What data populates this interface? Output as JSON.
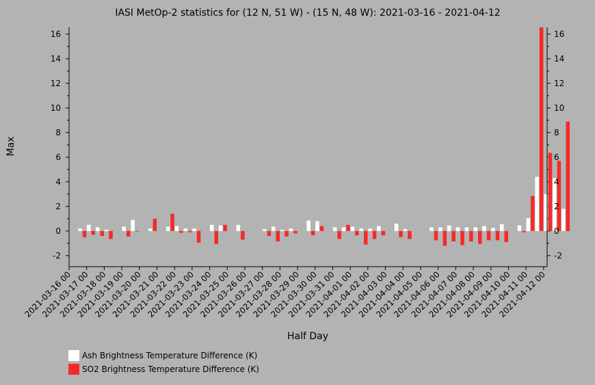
{
  "chart_data": {
    "type": "bar",
    "title": "IASI MetOp-2 statistics for (12 N, 51 W) - (15 N, 48 W): 2021-03-16 - 2021-04-12",
    "xlabel": "Half Day",
    "ylabel": "Max",
    "ylim": [
      -2.9,
      16.55
    ],
    "yticks": [
      -2,
      0,
      2,
      4,
      6,
      8,
      10,
      12,
      14,
      16
    ],
    "xlim": [
      0,
      54.4
    ],
    "xtick_positions": [
      0,
      2,
      4,
      6,
      8,
      10,
      12,
      14,
      16,
      18,
      20,
      22,
      24,
      26,
      28,
      30,
      32,
      34,
      36,
      38,
      40,
      42,
      44,
      46,
      48,
      50,
      52,
      54
    ],
    "xtick_labels": [
      "2021-03-16 00",
      "2021-03-17 00",
      "2021-03-18 00",
      "2021-03-19 00",
      "2021-03-20 00",
      "2021-03-21 00",
      "2021-03-22 00",
      "2021-03-23 00",
      "2021-03-24 00",
      "2021-03-25 00",
      "2021-03-26 00",
      "2021-03-27 00",
      "2021-03-28 00",
      "2021-03-29 00",
      "2021-03-30 00",
      "2021-03-31 00",
      "2021-04-01 00",
      "2021-04-02 00",
      "2021-04-03 00",
      "2021-04-04 00",
      "2021-04-05 00",
      "2021-04-06 00",
      "2021-04-07 00",
      "2021-04-08 00",
      "2021-04-09 00",
      "2021-04-10 00",
      "2021-04-11 00",
      "2021-04-12 00"
    ],
    "legend_placement": "bottom-left",
    "series": [
      {
        "name": "Ash Brightness Temperature Difference (K)",
        "color": "#ffffff",
        "values": [
          null,
          0.2,
          0.5,
          0.3,
          0.1,
          null,
          0.35,
          0.9,
          null,
          0.2,
          null,
          0.35,
          0.4,
          0.2,
          0.2,
          null,
          0.5,
          0.45,
          null,
          0.5,
          null,
          null,
          0.15,
          0.35,
          0.1,
          0.2,
          null,
          0.85,
          0.8,
          null,
          0.3,
          0.3,
          0.35,
          0.2,
          0.2,
          0.4,
          null,
          0.6,
          0.15,
          null,
          null,
          0.3,
          0.3,
          0.45,
          0.3,
          0.3,
          0.3,
          0.4,
          0.25,
          0.55,
          null,
          0.45,
          1.05,
          4.4,
          3.0,
          4.3,
          1.8
        ]
      },
      {
        "name": "SO2 Brightness Temperature Difference (K)",
        "color": "#f52a27",
        "values": [
          null,
          -0.5,
          -0.3,
          -0.4,
          -0.65,
          null,
          -0.45,
          0.0,
          null,
          1.0,
          null,
          1.4,
          -0.15,
          -0.1,
          -0.95,
          null,
          -1.05,
          0.5,
          null,
          -0.7,
          null,
          null,
          -0.4,
          -0.85,
          -0.45,
          -0.2,
          null,
          -0.35,
          0.4,
          null,
          -0.65,
          0.5,
          -0.35,
          -1.1,
          -0.65,
          -0.35,
          null,
          -0.5,
          -0.65,
          null,
          null,
          -0.75,
          -1.2,
          -0.85,
          -1.15,
          -0.85,
          -1.05,
          -0.75,
          -0.75,
          -0.9,
          null,
          -0.1,
          2.85,
          16.55,
          6.35,
          5.7,
          8.9
        ]
      }
    ]
  }
}
